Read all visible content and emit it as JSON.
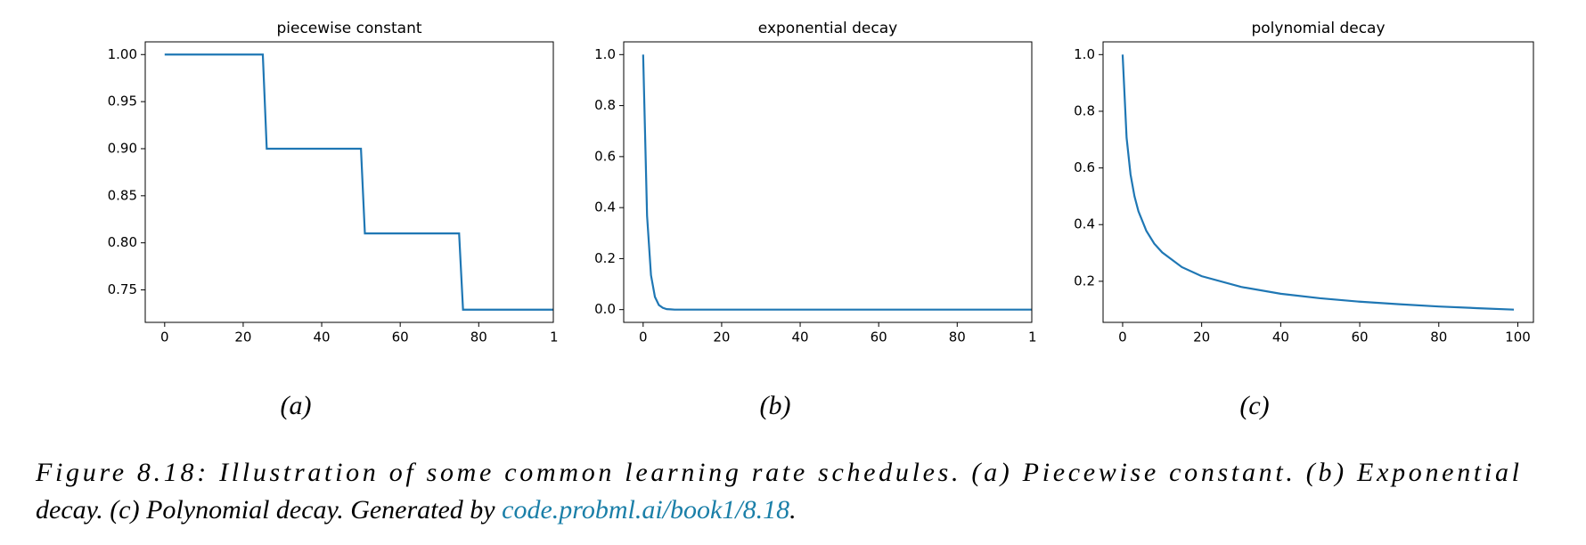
{
  "chart_data": [
    {
      "type": "line",
      "title": "piecewise constant",
      "x": [
        0,
        25,
        26,
        50,
        51,
        75,
        76,
        99
      ],
      "values": [
        1,
        1,
        0.9,
        0.9,
        0.81,
        0.81,
        0.729,
        0.729
      ],
      "color": "#1f77b4",
      "xlim": [
        -4.95,
        99
      ],
      "ylim": [
        0.7155,
        1.0135
      ],
      "xticks": [
        0,
        20,
        40,
        60,
        80,
        {
          "value": 100,
          "label": "1"
        }
      ],
      "yticks": [
        0.75,
        {
          "value": 0.8,
          "label": "0.80"
        },
        0.85,
        {
          "value": 0.9,
          "label": "0.90"
        },
        0.95,
        {
          "value": 1,
          "label": "1.00"
        }
      ]
    },
    {
      "type": "line",
      "title": "exponential decay",
      "x": [
        0,
        1,
        2,
        3,
        4,
        5,
        6,
        7,
        8,
        99
      ],
      "values": [
        1,
        0.368,
        0.135,
        0.05,
        0.018,
        0.007,
        0.002,
        0.001,
        0,
        0
      ],
      "color": "#1f77b4",
      "xlim": [
        -4.95,
        99
      ],
      "ylim": [
        -0.05,
        1.05
      ],
      "xticks": [
        0,
        20,
        40,
        60,
        80,
        {
          "value": 100,
          "label": "1"
        }
      ],
      "yticks": [
        {
          "value": 0,
          "label": "0.0"
        },
        0.2,
        0.4,
        0.6,
        0.8,
        {
          "value": 1,
          "label": "1.0"
        }
      ]
    },
    {
      "type": "line",
      "title": "polynomial decay",
      "x": [
        0,
        1,
        2,
        3,
        4,
        6,
        8,
        10,
        15,
        20,
        30,
        40,
        50,
        60,
        70,
        80,
        90,
        99
      ],
      "values": [
        1,
        0.707,
        0.577,
        0.5,
        0.447,
        0.378,
        0.333,
        0.302,
        0.25,
        0.218,
        0.18,
        0.156,
        0.14,
        0.128,
        0.119,
        0.111,
        0.105,
        0.1
      ],
      "color": "#1f77b4",
      "xlim": [
        -4.95,
        103.95
      ],
      "ylim": [
        0.055,
        1.045
      ],
      "xticks": [
        0,
        20,
        40,
        60,
        80,
        100
      ],
      "yticks": [
        0.2,
        0.4,
        0.6,
        0.8,
        {
          "value": 1,
          "label": "1.0"
        }
      ]
    }
  ],
  "subcaptions": [
    "(a)",
    "(b)",
    "(c)"
  ],
  "caption": {
    "line1": "Figure 8.18: Illustration of some common learning rate schedules. (a) Piecewise constant. (b) Exponential",
    "line2": "decay. (c) Polynomial decay. Generated by",
    "link": "code.probml.ai/book1/8.18",
    "end": "."
  }
}
